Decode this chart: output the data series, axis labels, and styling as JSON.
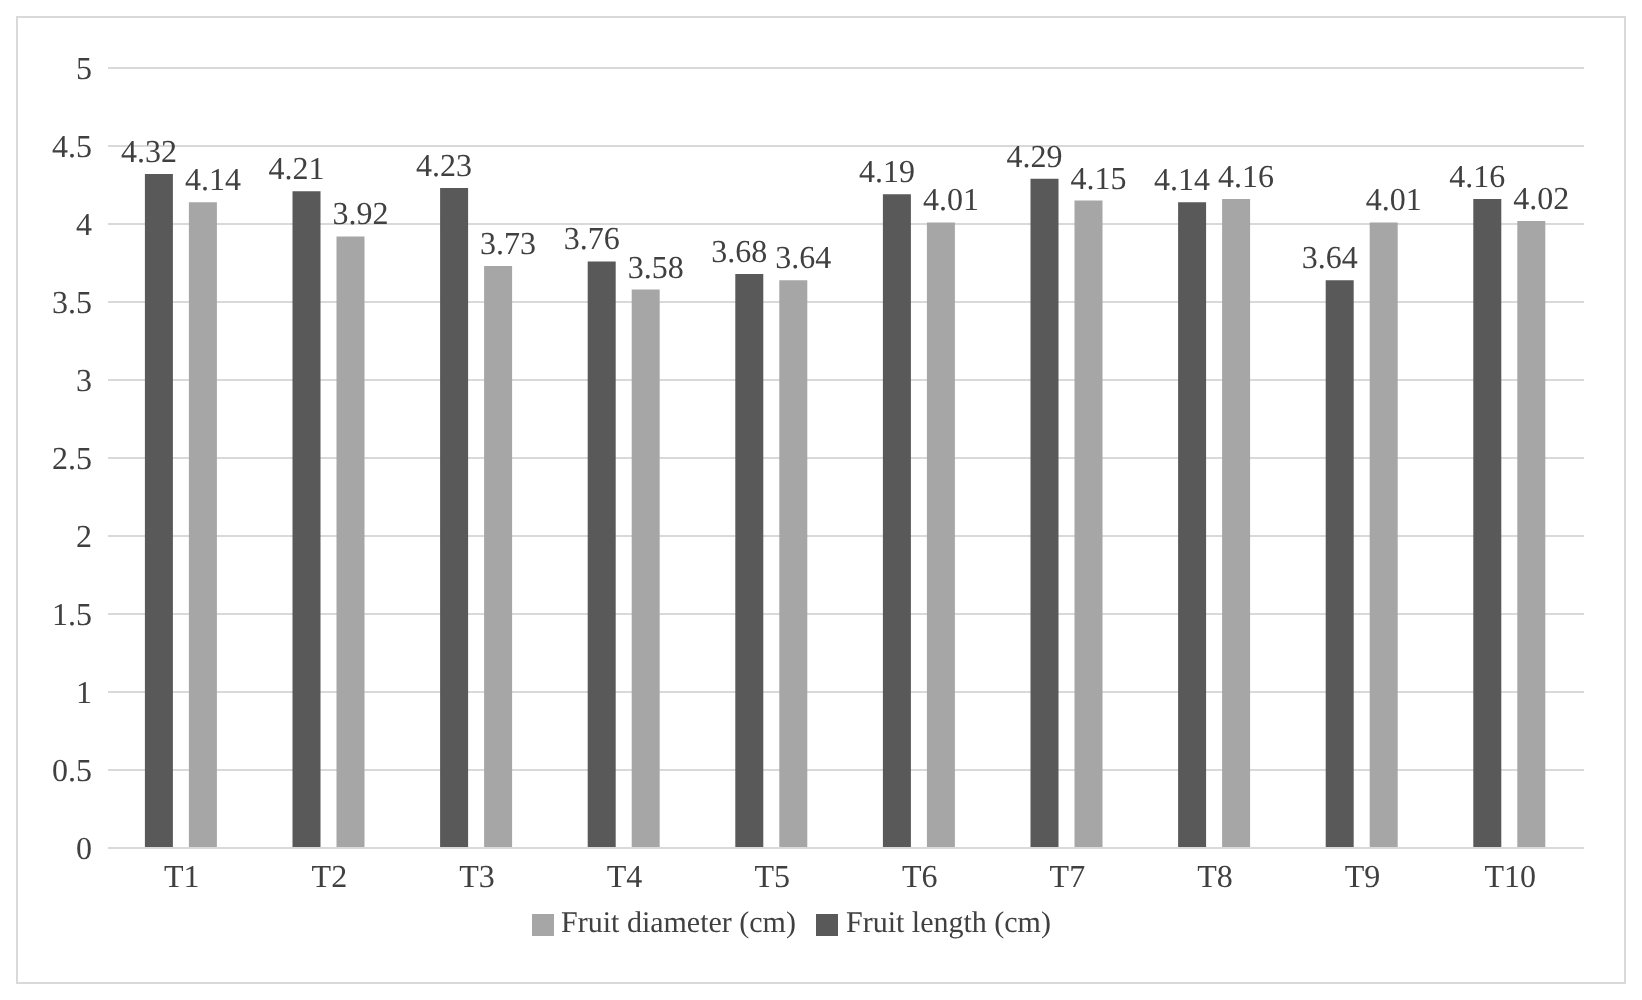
{
  "chart_data": {
    "type": "bar",
    "categories": [
      "T1",
      "T2",
      "T3",
      "T4",
      "T5",
      "T6",
      "T7",
      "T8",
      "T9",
      "T10"
    ],
    "series": [
      {
        "name": "Fruit length (cm)",
        "color": "#595959",
        "values": [
          4.32,
          4.21,
          4.23,
          3.76,
          3.68,
          4.19,
          4.29,
          4.14,
          3.64,
          4.16
        ]
      },
      {
        "name": "Fruit diameter (cm)",
        "color": "#a6a6a6",
        "values": [
          4.14,
          3.92,
          3.73,
          3.58,
          3.64,
          4.01,
          4.15,
          4.16,
          4.01,
          4.02
        ]
      }
    ],
    "ylim": [
      0,
      5
    ],
    "yticks": [
      0,
      0.5,
      1,
      1.5,
      2,
      2.5,
      3,
      3.5,
      4,
      4.5,
      5
    ],
    "grid": "y",
    "legend": "bottom",
    "data_labels": true
  }
}
